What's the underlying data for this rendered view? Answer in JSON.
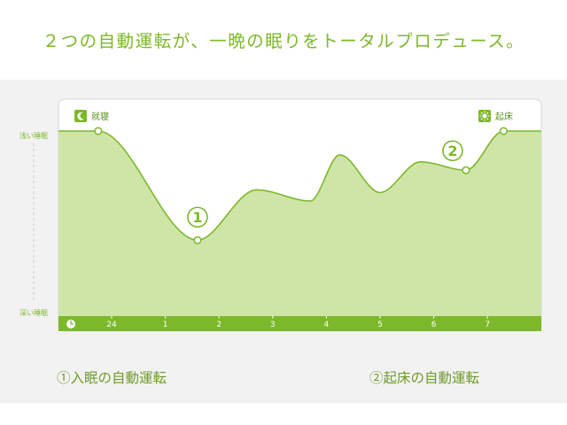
{
  "headline": "２つの自動運転が、一晩の眠りをトータルプロデュース。",
  "captions": {
    "left": "①入眠の自動運転",
    "right": "②起床の自動運転"
  },
  "colors": {
    "accent": "#7cb82a",
    "fill": "#cfe5a8",
    "line": "#7cb82a",
    "band": "#f2f2f2"
  },
  "chart_data": {
    "type": "area",
    "title": "",
    "xlabel": "",
    "ylabel": "",
    "x_ticks": [
      "24",
      "1",
      "2",
      "3",
      "4",
      "5",
      "6",
      "7"
    ],
    "y_labels": {
      "top": "浅い睡眠",
      "bottom": "深い睡眠"
    },
    "markers": {
      "sleep": {
        "label": "就寝",
        "icon": "moon-icon",
        "x": 23.75
      },
      "wake": {
        "label": "起床",
        "icon": "sun-icon",
        "x": 7.3
      }
    },
    "annotations": [
      {
        "label": "①",
        "x": 1.6,
        "y": 0.22
      },
      {
        "label": "②",
        "x": 6.6,
        "y": 0.72
      }
    ],
    "series": [
      {
        "points": [
          {
            "x": 23.0,
            "y": 1.0
          },
          {
            "x": 23.75,
            "y": 1.0
          },
          {
            "x": 1.6,
            "y": 0.22
          },
          {
            "x": 2.7,
            "y": 0.58
          },
          {
            "x": 3.7,
            "y": 0.5
          },
          {
            "x": 4.25,
            "y": 0.83
          },
          {
            "x": 5.0,
            "y": 0.56
          },
          {
            "x": 5.75,
            "y": 0.78
          },
          {
            "x": 6.6,
            "y": 0.72
          },
          {
            "x": 7.3,
            "y": 1.0
          },
          {
            "x": 8.0,
            "y": 1.0
          }
        ]
      }
    ]
  }
}
